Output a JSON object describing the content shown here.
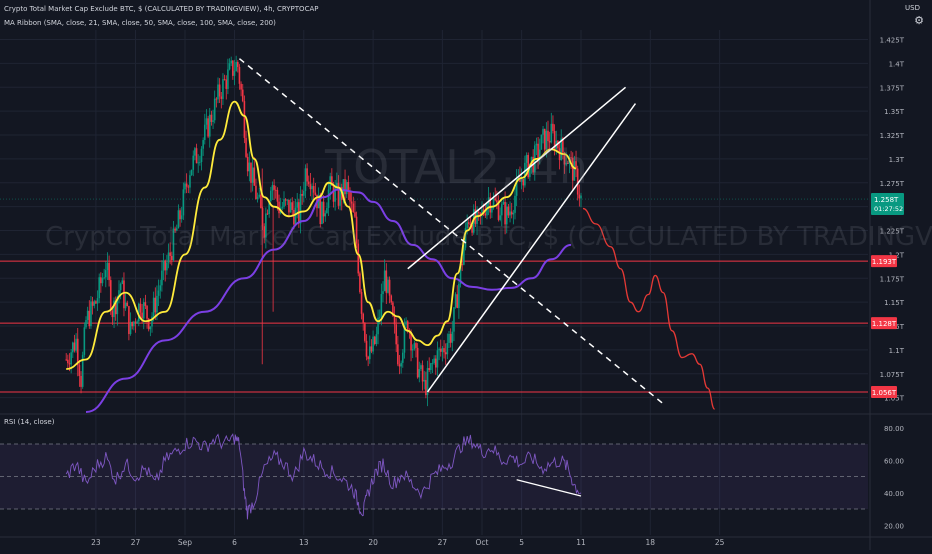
{
  "header": {
    "line1": "Crypto Total Market Cap Exclude BTC, $ (CALCULATED BY TRADINGVIEW), 4h, CRYPTOCAP",
    "line2": "MA Ribbon (SMA, close, 21, SMA, close, 50, SMA, close, 100, SMA, close, 200)",
    "currency": "USD",
    "gear_icon": "gear-icon"
  },
  "watermark": {
    "symbol": "TOTAL2, 4h",
    "name": "Crypto Total Market Cap Exclude BTC, $ (CALCULATED BY TRADINGVIEW)"
  },
  "chart_data": [
    {
      "type": "candlestick",
      "title": "Crypto Total Market Cap Exclude BTC, $ (CALCULATED BY TRADINGVIEW), 4h, CRYPTOCAP",
      "ylim": [
        1.035,
        1.435
      ],
      "y_ticks": [
        "1.425T",
        "1.4T",
        "1.375T",
        "1.35T",
        "1.325T",
        "1.3T",
        "1.275T",
        "1.25T",
        "1.225T",
        "1.2T",
        "1.175T",
        "1.15T",
        "1.125T",
        "1.1T",
        "1.075T",
        "1.05T"
      ],
      "y_tick_values": [
        1.425,
        1.4,
        1.375,
        1.35,
        1.325,
        1.3,
        1.275,
        1.25,
        1.225,
        1.2,
        1.175,
        1.15,
        1.125,
        1.1,
        1.075,
        1.05
      ],
      "x_ticks": [
        "23",
        "27",
        "Sep",
        "6",
        "13",
        "20",
        "27",
        "Oct",
        "5",
        "11",
        "18",
        "25"
      ],
      "x_tick_days": [
        -9,
        -5,
        0,
        5,
        12,
        19,
        26,
        30,
        34,
        40,
        47,
        54
      ],
      "price_label": {
        "value": "1.258T",
        "countdown": "01:27:52",
        "y": 1.258,
        "color": "#089981"
      },
      "levels": [
        {
          "label": "1.193T",
          "y": 1.193,
          "color": "#f23645"
        },
        {
          "label": "1.128T",
          "y": 1.128,
          "color": "#f23645"
        },
        {
          "label": "1.056T",
          "y": 1.056,
          "color": "#f23645"
        }
      ],
      "green_level": 1.258,
      "candle_anchors": [
        [
          -12,
          1.09
        ],
        [
          -11,
          1.11
        ],
        [
          -10.5,
          1.07
        ],
        [
          -10,
          1.13
        ],
        [
          -9,
          1.15
        ],
        [
          -8,
          1.19
        ],
        [
          -7.3,
          1.14
        ],
        [
          -6.5,
          1.17
        ],
        [
          -5.5,
          1.12
        ],
        [
          -4.5,
          1.15
        ],
        [
          -3.5,
          1.13
        ],
        [
          -2.5,
          1.17
        ],
        [
          -1.5,
          1.2
        ],
        [
          -0.5,
          1.24
        ],
        [
          0.5,
          1.29
        ],
        [
          1.5,
          1.31
        ],
        [
          2.5,
          1.34
        ],
        [
          3.5,
          1.37
        ],
        [
          4.5,
          1.39
        ],
        [
          5.3,
          1.4
        ],
        [
          5.8,
          1.36
        ],
        [
          6.3,
          1.3
        ],
        [
          7,
          1.27
        ],
        [
          8,
          1.23
        ],
        [
          8.7,
          1.28
        ],
        [
          9.5,
          1.25
        ],
        [
          10.5,
          1.25
        ],
        [
          11.5,
          1.24
        ],
        [
          12.2,
          1.29
        ],
        [
          12.8,
          1.28
        ],
        [
          13.8,
          1.24
        ],
        [
          14.6,
          1.27
        ],
        [
          15.5,
          1.26
        ],
        [
          16.3,
          1.27
        ],
        [
          17.2,
          1.23
        ],
        [
          17.8,
          1.15
        ],
        [
          18.5,
          1.09
        ],
        [
          19.3,
          1.11
        ],
        [
          20.2,
          1.18
        ],
        [
          20.8,
          1.14
        ],
        [
          21.6,
          1.09
        ],
        [
          22.5,
          1.13
        ],
        [
          23.3,
          1.09
        ],
        [
          24.2,
          1.06
        ],
        [
          25.2,
          1.09
        ],
        [
          26,
          1.1
        ],
        [
          27,
          1.12
        ],
        [
          27.8,
          1.18
        ],
        [
          28.6,
          1.24
        ],
        [
          29.6,
          1.23
        ],
        [
          30.6,
          1.26
        ],
        [
          31.6,
          1.25
        ],
        [
          32.6,
          1.24
        ],
        [
          33.6,
          1.27
        ],
        [
          34.4,
          1.29
        ],
        [
          35.3,
          1.3
        ],
        [
          36.2,
          1.32
        ],
        [
          37,
          1.325
        ],
        [
          38,
          1.31
        ],
        [
          38.7,
          1.3
        ],
        [
          39.5,
          1.28
        ],
        [
          40,
          1.258
        ]
      ],
      "ma_yellow": [
        [
          -12,
          1.08
        ],
        [
          -10,
          1.09
        ],
        [
          -8,
          1.14
        ],
        [
          -6,
          1.16
        ],
        [
          -4,
          1.13
        ],
        [
          -2,
          1.14
        ],
        [
          0,
          1.2
        ],
        [
          2,
          1.27
        ],
        [
          3.5,
          1.32
        ],
        [
          5,
          1.36
        ],
        [
          6,
          1.345
        ],
        [
          7,
          1.3
        ],
        [
          8,
          1.26
        ],
        [
          9,
          1.25
        ],
        [
          10.5,
          1.24
        ],
        [
          12,
          1.245
        ],
        [
          13.5,
          1.26
        ],
        [
          14.5,
          1.275
        ],
        [
          15.5,
          1.27
        ],
        [
          16.5,
          1.25
        ],
        [
          17.5,
          1.2
        ],
        [
          18.5,
          1.15
        ],
        [
          19.5,
          1.13
        ],
        [
          20.5,
          1.14
        ],
        [
          21.5,
          1.135
        ],
        [
          22.5,
          1.12
        ],
        [
          23.5,
          1.11
        ],
        [
          24.5,
          1.105
        ],
        [
          25.5,
          1.115
        ],
        [
          26.5,
          1.13
        ],
        [
          27.5,
          1.18
        ],
        [
          28.5,
          1.225
        ],
        [
          29.5,
          1.24
        ],
        [
          31,
          1.25
        ],
        [
          32.5,
          1.26
        ],
        [
          34,
          1.28
        ],
        [
          35.5,
          1.3
        ],
        [
          37,
          1.31
        ],
        [
          38.3,
          1.305
        ],
        [
          39.5,
          1.29
        ]
      ],
      "ma_purple": [
        [
          -10,
          1.035
        ],
        [
          -6,
          1.07
        ],
        [
          -2,
          1.11
        ],
        [
          2,
          1.14
        ],
        [
          6,
          1.175
        ],
        [
          9,
          1.205
        ],
        [
          12,
          1.235
        ],
        [
          14,
          1.26
        ],
        [
          15.5,
          1.268
        ],
        [
          17.5,
          1.265
        ],
        [
          19,
          1.255
        ],
        [
          21,
          1.235
        ],
        [
          23,
          1.21
        ],
        [
          25,
          1.195
        ],
        [
          27,
          1.175
        ],
        [
          29,
          1.166
        ],
        [
          31,
          1.163
        ],
        [
          33,
          1.165
        ],
        [
          35,
          1.175
        ],
        [
          37,
          1.195
        ],
        [
          39,
          1.21
        ]
      ],
      "projection": [
        [
          40.2,
          1.248
        ],
        [
          41.5,
          1.232
        ],
        [
          43,
          1.208
        ],
        [
          44,
          1.185
        ],
        [
          45,
          1.15
        ],
        [
          45.8,
          1.14
        ],
        [
          46.8,
          1.158
        ],
        [
          47.5,
          1.178
        ],
        [
          48.3,
          1.16
        ],
        [
          49.2,
          1.12
        ],
        [
          50.2,
          1.092
        ],
        [
          51.2,
          1.096
        ],
        [
          52,
          1.085
        ],
        [
          52.8,
          1.06
        ],
        [
          53.5,
          1.038
        ]
      ],
      "downtrend": [
        [
          5.5,
          1.405
        ],
        [
          48.5,
          1.042
        ]
      ],
      "wedge_upper": [
        [
          22.5,
          1.185
        ],
        [
          44.5,
          1.375
        ]
      ],
      "wedge_lower": [
        [
          24.5,
          1.056
        ],
        [
          45.5,
          1.358
        ]
      ],
      "colors": {
        "up": "#089981",
        "down": "#f23645",
        "ma_fast": "#ffeb3b",
        "ma_slow": "#7b3fe4",
        "projection": "#e53935",
        "trend": "#ffffff"
      }
    },
    {
      "type": "line",
      "title": "RSI (14, close)",
      "ylim": [
        14,
        86
      ],
      "y_ticks": [
        "80.00",
        "60.00",
        "40.00",
        "20.00"
      ],
      "y_tick_values": [
        80,
        60,
        40,
        20
      ],
      "levels": [
        70,
        50,
        30
      ],
      "rsi": [
        [
          -12,
          50
        ],
        [
          -11,
          58
        ],
        [
          -10,
          45
        ],
        [
          -9,
          56
        ],
        [
          -8,
          62
        ],
        [
          -7,
          48
        ],
        [
          -6,
          58
        ],
        [
          -5,
          50
        ],
        [
          -4,
          55
        ],
        [
          -3,
          45
        ],
        [
          -2,
          60
        ],
        [
          -1,
          65
        ],
        [
          0,
          70
        ],
        [
          1,
          72
        ],
        [
          2,
          68
        ],
        [
          3,
          73
        ],
        [
          4,
          70
        ],
        [
          5,
          74
        ],
        [
          5.5,
          70
        ],
        [
          6,
          40
        ],
        [
          6.3,
          28
        ],
        [
          7,
          35
        ],
        [
          8,
          55
        ],
        [
          9,
          62
        ],
        [
          10,
          58
        ],
        [
          11,
          50
        ],
        [
          12,
          65
        ],
        [
          13,
          60
        ],
        [
          14,
          55
        ],
        [
          15,
          52
        ],
        [
          16,
          48
        ],
        [
          17,
          42
        ],
        [
          17.6,
          32
        ],
        [
          18,
          28
        ],
        [
          18.5,
          40
        ],
        [
          19.2,
          52
        ],
        [
          20,
          58
        ],
        [
          21,
          45
        ],
        [
          22,
          52
        ],
        [
          23,
          45
        ],
        [
          24,
          40
        ],
        [
          25,
          50
        ],
        [
          26,
          55
        ],
        [
          27,
          60
        ],
        [
          28,
          70
        ],
        [
          29,
          72
        ],
        [
          30,
          65
        ],
        [
          31,
          68
        ],
        [
          32,
          60
        ],
        [
          33,
          62
        ],
        [
          34,
          58
        ],
        [
          35,
          62
        ],
        [
          36,
          55
        ],
        [
          37,
          58
        ],
        [
          38,
          60
        ],
        [
          38.7,
          55
        ],
        [
          39.3,
          45
        ],
        [
          40,
          40
        ]
      ],
      "divergence": [
        [
          33.5,
          48
        ],
        [
          40,
          38
        ]
      ],
      "colors": {
        "line": "#7e57c2",
        "band": "rgba(126,87,194,0.10)",
        "divergence": "#ffffff"
      }
    }
  ]
}
